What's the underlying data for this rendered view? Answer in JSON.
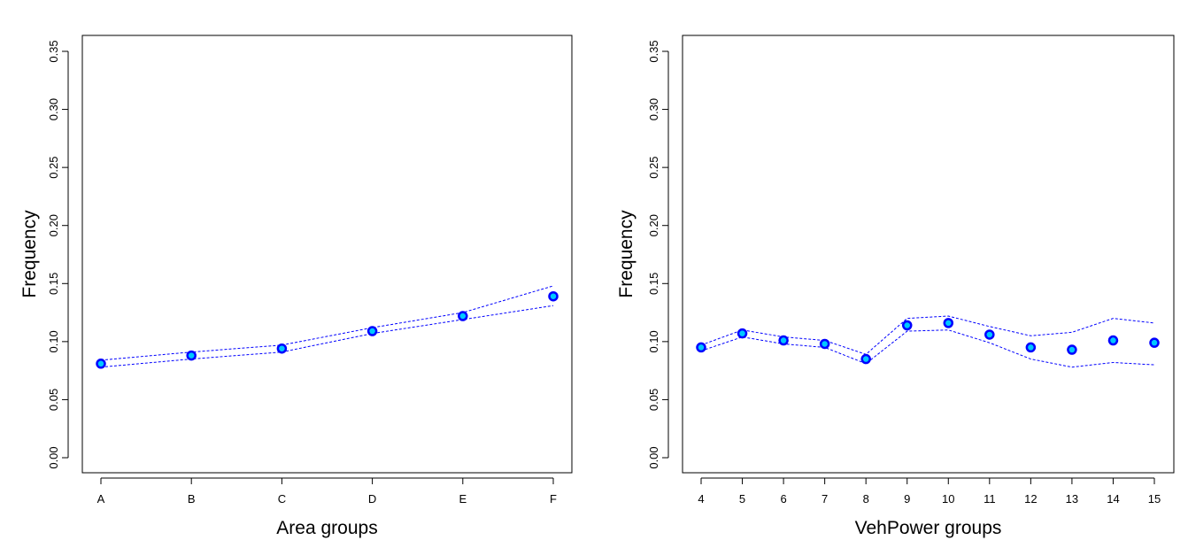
{
  "chart_data": [
    {
      "type": "line",
      "title": "",
      "xlabel": "Area groups",
      "ylabel": "Frequency",
      "categories": [
        "A",
        "B",
        "C",
        "D",
        "E",
        "F"
      ],
      "ylim": [
        0,
        0.35
      ],
      "yticks": [
        "0.00",
        "0.05",
        "0.10",
        "0.15",
        "0.20",
        "0.25",
        "0.30",
        "0.35"
      ],
      "grid": false,
      "series": [
        {
          "role": "estimate",
          "values": [
            0.081,
            0.088,
            0.094,
            0.109,
            0.122,
            0.139
          ]
        },
        {
          "role": "upper",
          "values": [
            0.084,
            0.091,
            0.097,
            0.112,
            0.125,
            0.148
          ]
        },
        {
          "role": "lower",
          "values": [
            0.078,
            0.085,
            0.091,
            0.107,
            0.119,
            0.131
          ]
        }
      ],
      "colors": {
        "point_fill": "#00c8ff",
        "point_stroke": "#0000ff",
        "band": "#0000ff"
      }
    },
    {
      "type": "line",
      "title": "",
      "xlabel": "VehPower groups",
      "ylabel": "Frequency",
      "categories": [
        "4",
        "5",
        "6",
        "7",
        "8",
        "9",
        "10",
        "11",
        "12",
        "13",
        "14",
        "15"
      ],
      "ylim": [
        0,
        0.35
      ],
      "yticks": [
        "0.00",
        "0.05",
        "0.10",
        "0.15",
        "0.20",
        "0.25",
        "0.30",
        "0.35"
      ],
      "grid": false,
      "series": [
        {
          "role": "estimate",
          "values": [
            0.095,
            0.107,
            0.101,
            0.098,
            0.085,
            0.114,
            0.116,
            0.106,
            0.095,
            0.093,
            0.101,
            0.099
          ]
        },
        {
          "role": "upper",
          "values": [
            0.097,
            0.11,
            0.104,
            0.101,
            0.089,
            0.12,
            0.122,
            0.113,
            0.105,
            0.108,
            0.12,
            0.116
          ]
        },
        {
          "role": "lower",
          "values": [
            0.092,
            0.104,
            0.098,
            0.095,
            0.081,
            0.109,
            0.11,
            0.099,
            0.085,
            0.078,
            0.082,
            0.08
          ]
        }
      ],
      "colors": {
        "point_fill": "#00c8ff",
        "point_stroke": "#0000ff",
        "band": "#0000ff"
      }
    }
  ]
}
